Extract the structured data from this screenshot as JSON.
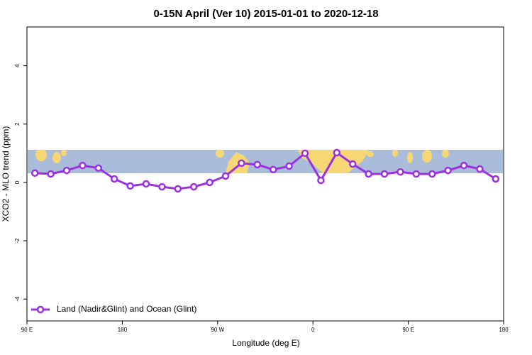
{
  "chart_data": {
    "type": "line",
    "title": "0-15N April (Ver 10)   2015-01-01 to 2020-12-18",
    "xlabel": "Longitude (deg E)",
    "ylabel": "XCO2 - MLO trend (ppm)",
    "x": [
      97.5,
      112.5,
      127.5,
      142.5,
      157.5,
      172.5,
      187.5,
      202.5,
      217.5,
      232.5,
      247.5,
      262.5,
      277.5,
      292.5,
      307.5,
      322.5,
      337.5,
      352.5,
      367.5,
      382.5,
      397.5,
      412.5,
      427.5,
      442.5,
      457.5,
      472.5,
      487.5,
      502.5,
      517.5,
      532.5
    ],
    "series": [
      {
        "name": "Land (Nadir&Glint) and Ocean (Glint)",
        "color": "#9b30e0",
        "values": [
          0.32,
          0.29,
          0.41,
          0.58,
          0.49,
          0.12,
          -0.12,
          -0.05,
          -0.15,
          -0.22,
          -0.15,
          0.0,
          0.22,
          0.66,
          0.61,
          0.44,
          0.56,
          1.0,
          0.07,
          1.02,
          0.63,
          0.29,
          0.29,
          0.36,
          0.29,
          0.29,
          0.41,
          0.58,
          0.46,
          0.12
        ]
      }
    ],
    "xlim": [
      90,
      540
    ],
    "xticks": [
      {
        "value": 90,
        "label": "90 E"
      },
      180,
      {
        "value": 270,
        "label": "90 W"
      },
      {
        "value": 360,
        "label": "0"
      },
      {
        "value": 450,
        "label": "90 E"
      },
      {
        "value": 540,
        "label": "180"
      }
    ],
    "ylim": [
      -4.75,
      5.33
    ],
    "yticks": [
      -4,
      -2,
      0,
      2,
      4
    ],
    "legend": "bottom-left"
  }
}
